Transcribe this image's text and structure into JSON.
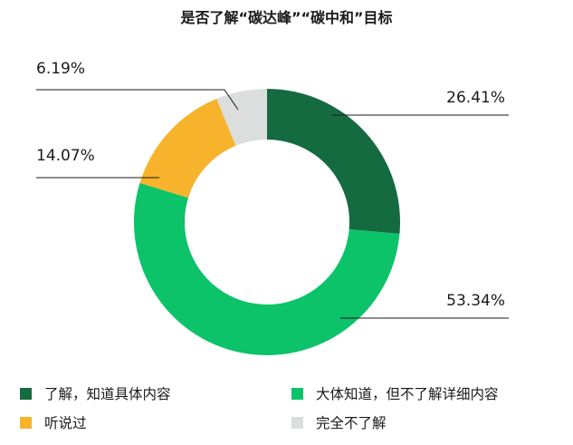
{
  "chart_data": {
    "type": "pie",
    "title": "是否了解“碳达峰”“碳中和”目标",
    "categories": [
      "了解，知道具体内容",
      "大体知道，但不了解详细内容",
      "听说过",
      "完全不了解"
    ],
    "values": [
      26.41,
      53.34,
      14.07,
      6.19
    ],
    "labels": [
      "26.41%",
      "53.34%",
      "14.07%",
      "6.19%"
    ],
    "colors": [
      "#156b40",
      "#0cc36a",
      "#f7b32b",
      "#dcdedd"
    ],
    "legend_placement": "bottom"
  }
}
